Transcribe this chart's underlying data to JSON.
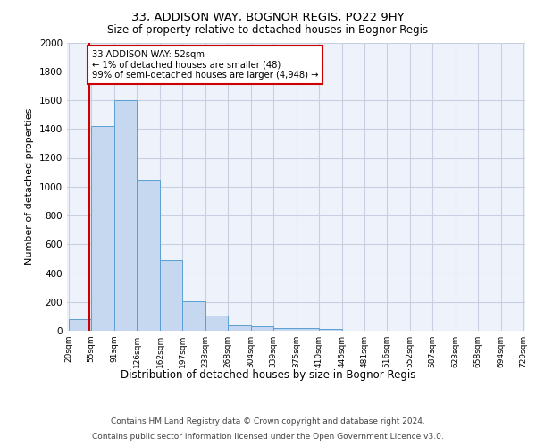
{
  "title1": "33, ADDISON WAY, BOGNOR REGIS, PO22 9HY",
  "title2": "Size of property relative to detached houses in Bognor Regis",
  "xlabel": "Distribution of detached houses by size in Bognor Regis",
  "ylabel": "Number of detached properties",
  "bin_labels": [
    "20sqm",
    "55sqm",
    "91sqm",
    "126sqm",
    "162sqm",
    "197sqm",
    "233sqm",
    "268sqm",
    "304sqm",
    "339sqm",
    "375sqm",
    "410sqm",
    "446sqm",
    "481sqm",
    "516sqm",
    "552sqm",
    "587sqm",
    "623sqm",
    "658sqm",
    "694sqm",
    "729sqm"
  ],
  "bin_edges": [
    20,
    55,
    91,
    126,
    162,
    197,
    233,
    268,
    304,
    339,
    375,
    410,
    446,
    481,
    516,
    552,
    587,
    623,
    658,
    694,
    729
  ],
  "bar_heights": [
    80,
    1420,
    1600,
    1050,
    490,
    205,
    105,
    40,
    30,
    20,
    20,
    15,
    0,
    0,
    0,
    0,
    0,
    0,
    0,
    0
  ],
  "bar_color": "#c5d8f0",
  "bar_edge_color": "#5a9fd4",
  "red_line_x": 52,
  "annotation_text": "33 ADDISON WAY: 52sqm\n← 1% of detached houses are smaller (48)\n99% of semi-detached houses are larger (4,948) →",
  "annotation_box_color": "#ffffff",
  "annotation_box_edge": "#cc0000",
  "ylim": [
    0,
    2000
  ],
  "yticks": [
    0,
    200,
    400,
    600,
    800,
    1000,
    1200,
    1400,
    1600,
    1800,
    2000
  ],
  "footer1": "Contains HM Land Registry data © Crown copyright and database right 2024.",
  "footer2": "Contains public sector information licensed under the Open Government Licence v3.0.",
  "bg_color": "#eef2fb",
  "grid_color": "#c8cfe0"
}
